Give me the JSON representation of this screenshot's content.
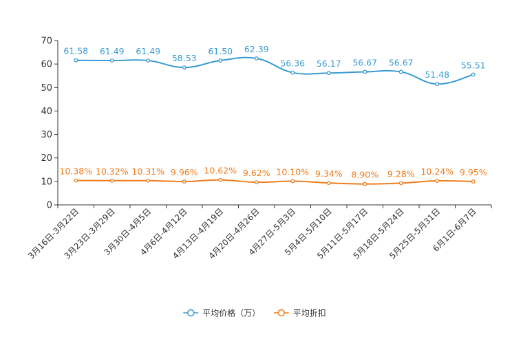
{
  "chart_data": {
    "type": "line",
    "categories": [
      "3月16日-3月22日",
      "3月23日-3月29日",
      "3月30日-4月5日",
      "4月6日-4月12日",
      "4月13日-4月19日",
      "4月20日-4月26日",
      "4月27日-5月3日",
      "5月4日-5月10日",
      "5月11日-5月17日",
      "5月18日-5月24日",
      "5月25日-5月31日",
      "6月1日-6月7日"
    ],
    "series": [
      {
        "name": "平均价格（万）",
        "color": "#3a9bd1",
        "values": [
          61.58,
          61.49,
          61.49,
          58.53,
          61.5,
          62.39,
          56.36,
          56.17,
          56.67,
          56.67,
          51.48,
          55.51
        ],
        "labels": [
          "61.58",
          "61.49",
          "61.49",
          "58.53",
          "61.50",
          "62.39",
          "56.36",
          "56.17",
          "56.67",
          "56.67",
          "51.48",
          "55.51"
        ]
      },
      {
        "name": "平均折扣",
        "color": "#f07c1c",
        "values": [
          10.38,
          10.32,
          10.31,
          9.96,
          10.62,
          9.62,
          10.1,
          9.34,
          8.9,
          9.28,
          10.24,
          9.95
        ],
        "labels": [
          "10.38%",
          "10.32%",
          "10.31%",
          "9.96%",
          "10.62%",
          "9.62%",
          "10.10%",
          "9.34%",
          "8.90%",
          "9.28%",
          "10.24%",
          "9.95%"
        ]
      }
    ],
    "y_ticks": [
      "0",
      "10",
      "20",
      "30",
      "40",
      "50",
      "60",
      "70"
    ],
    "ylim": [
      0,
      70
    ],
    "grid": false,
    "legend_position": "bottom-center"
  }
}
